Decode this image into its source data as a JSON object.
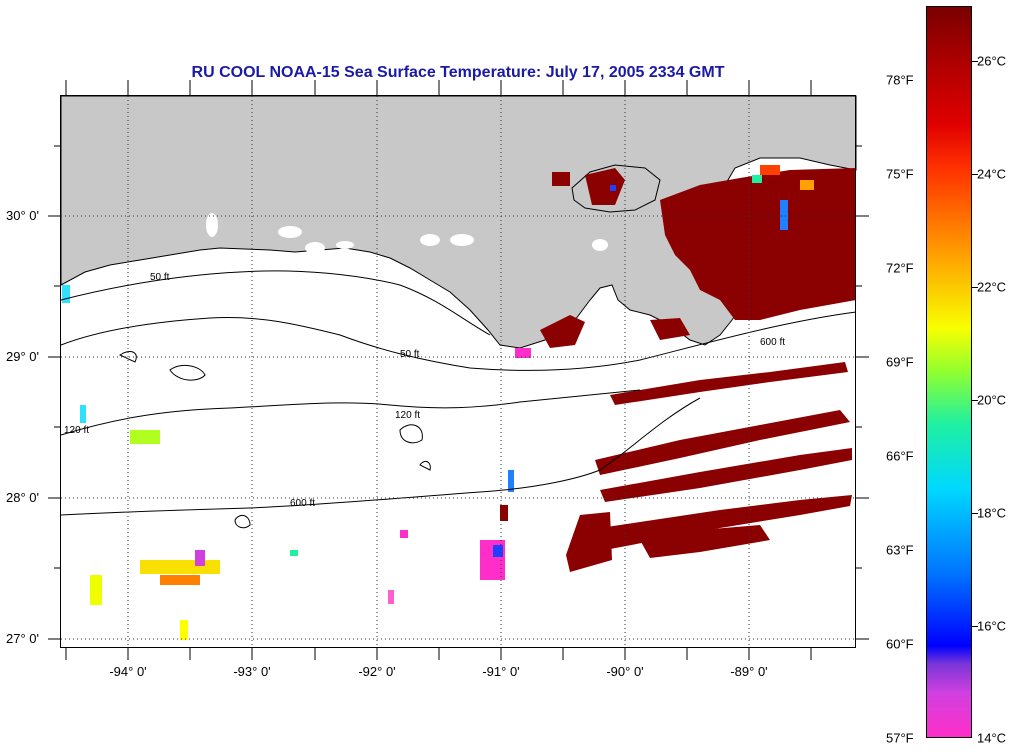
{
  "title": "RU COOL  NOAA-15  Sea Surface Temperature:  July 17, 2005 2334 GMT",
  "latitude_labels": [
    "30° 0'",
    "29° 0'",
    "28° 0'",
    "27° 0'"
  ],
  "longitude_labels": [
    "-94° 0'",
    "-93° 0'",
    "-92° 0'",
    "-91° 0'",
    "-90° 0'",
    "-89° 0'"
  ],
  "contour_labels": [
    "50 ft",
    "120 ft",
    "600 ft"
  ],
  "colorbar": {
    "fahrenheit_labels": [
      "78°F",
      "75°F",
      "72°F",
      "69°F",
      "66°F",
      "63°F",
      "60°F",
      "57°F"
    ],
    "celsius_labels": [
      "26°C",
      "24°C",
      "22°C",
      "20°C",
      "18°C",
      "16°C",
      "14°C"
    ]
  },
  "colors": {
    "land": "#c8c8c8",
    "title": "#1a1aa6",
    "warm_water": "#8b0000"
  },
  "map_extent": {
    "lon_min": -94.5,
    "lon_max": -88.1,
    "lat_min": 26.95,
    "lat_max": 30.85
  }
}
